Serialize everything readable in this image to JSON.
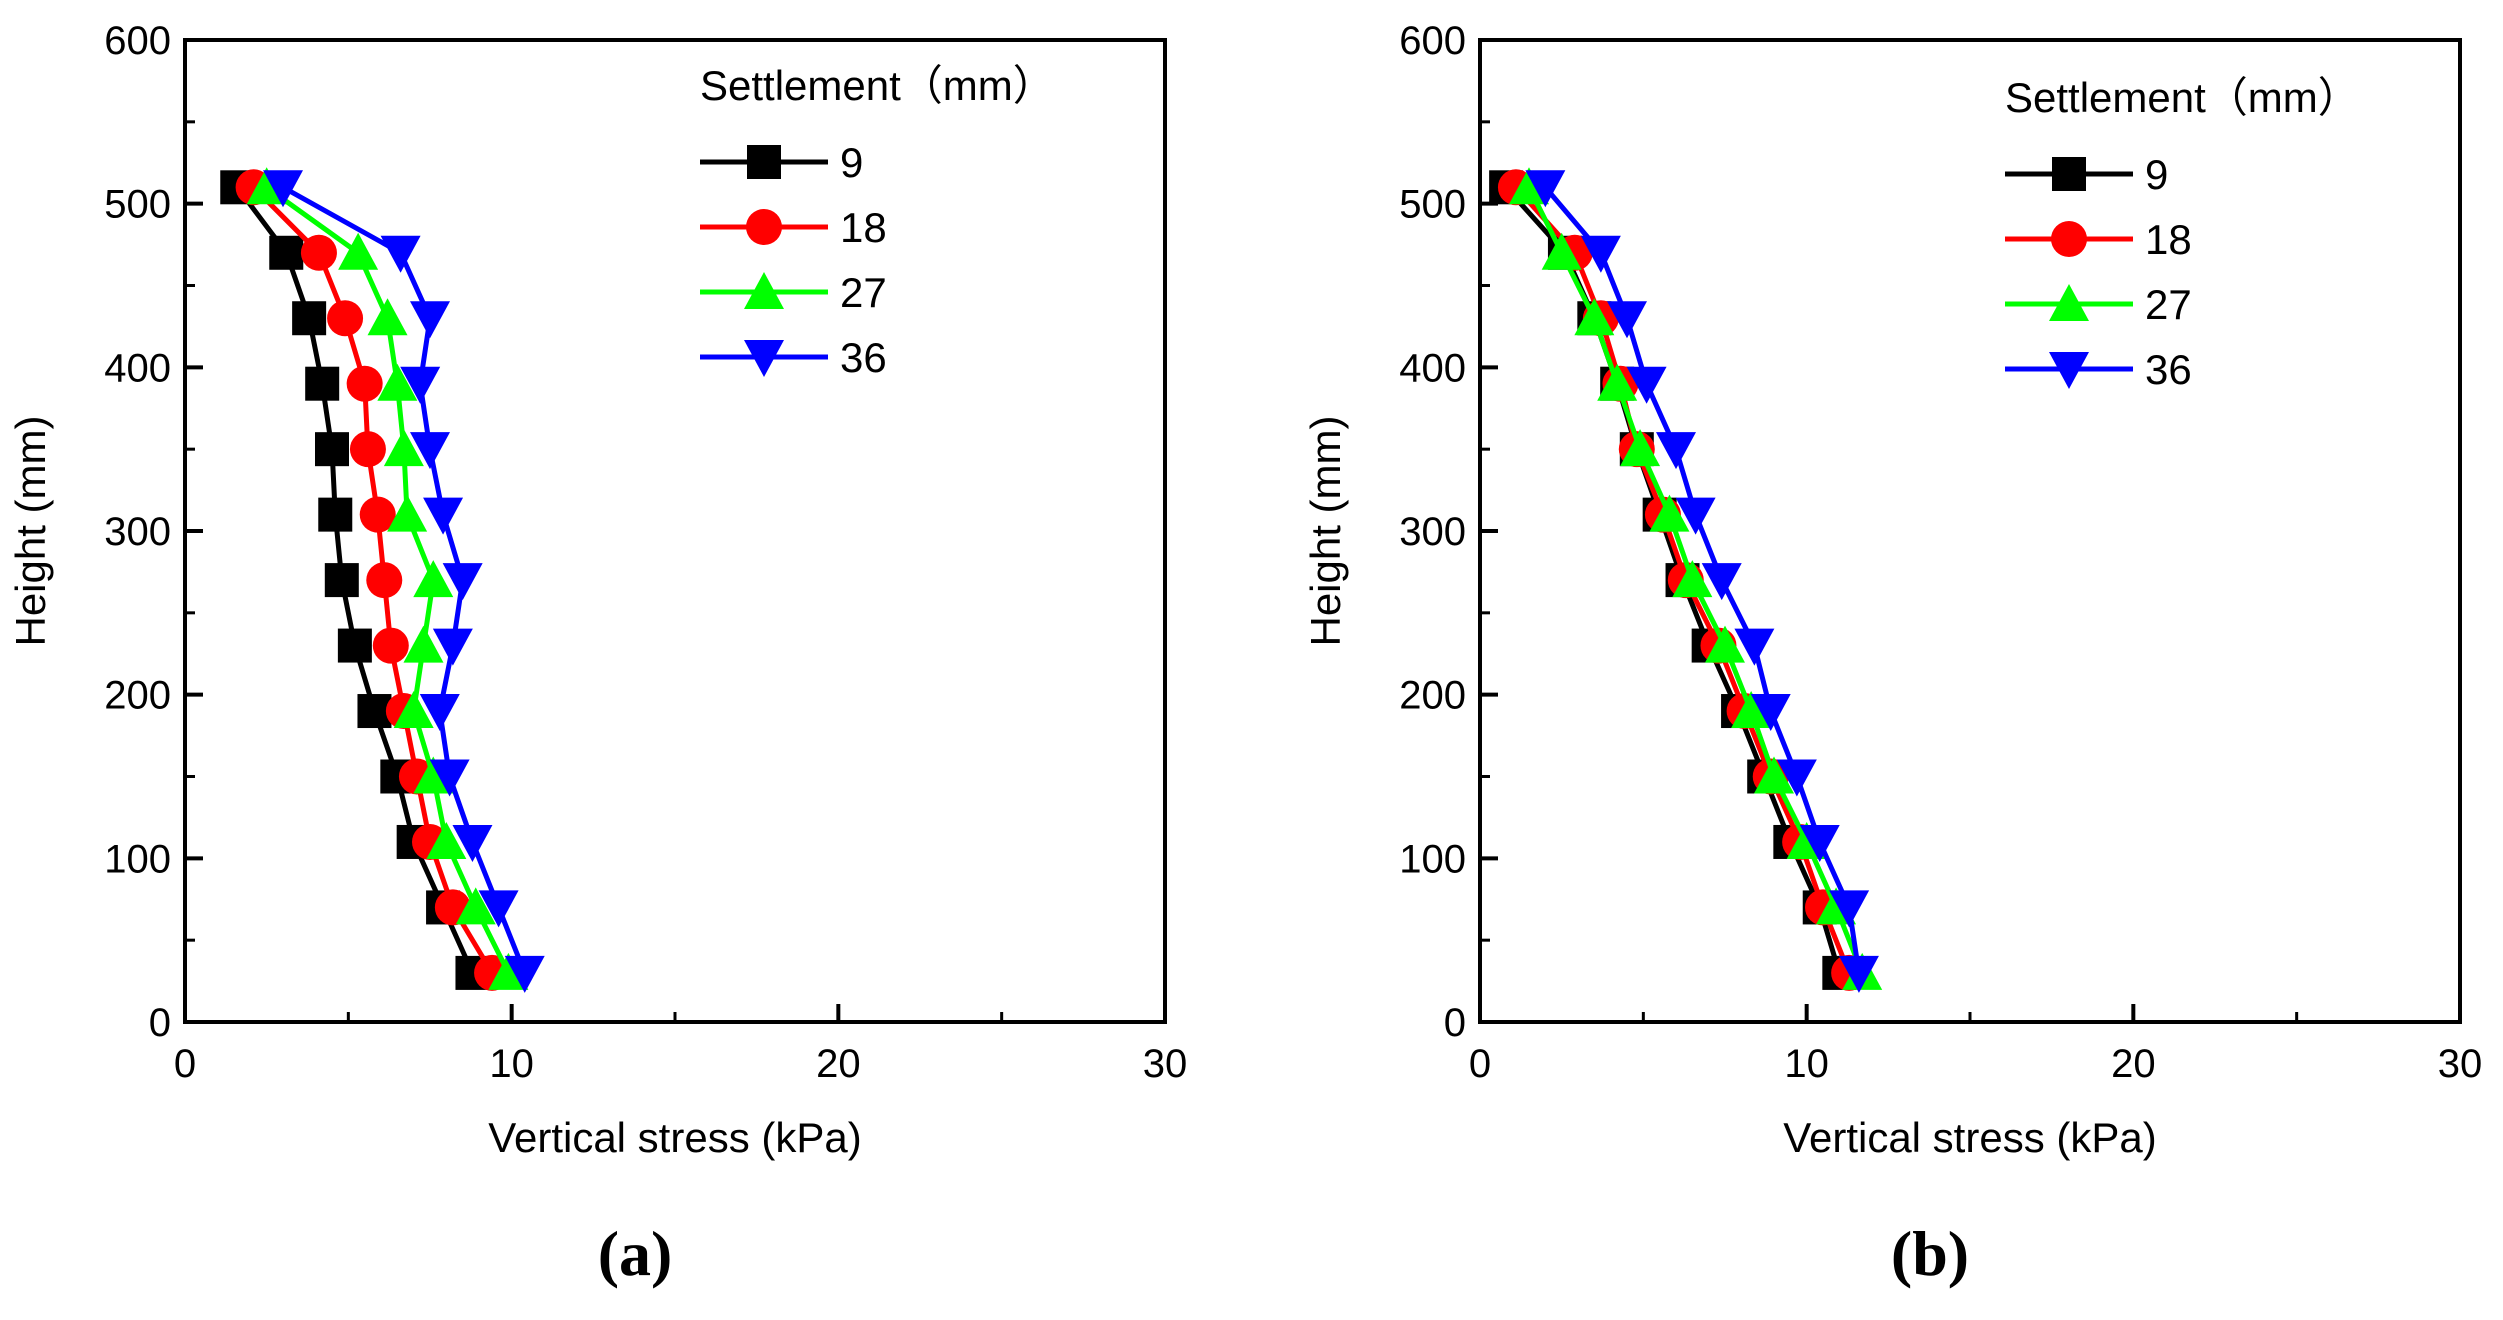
{
  "chart_data": [
    {
      "type": "line",
      "panel_label": "(a)",
      "xlabel": "Vertical stress (kPa)",
      "ylabel": "Height (mm)",
      "xlim": [
        0,
        30
      ],
      "ylim": [
        0,
        600
      ],
      "xticks": [
        0,
        10,
        20,
        30
      ],
      "yticks": [
        0,
        100,
        200,
        300,
        400,
        500,
        600
      ],
      "grid": false,
      "legend": {
        "title": "Settlement（mm）",
        "position": "top-right"
      },
      "y": [
        30,
        70,
        110,
        150,
        190,
        230,
        270,
        310,
        350,
        390,
        430,
        470,
        510
      ],
      "series": [
        {
          "name": "9",
          "color": "#000000",
          "marker": "square",
          "x": [
            8.8,
            7.9,
            7.0,
            6.5,
            5.8,
            5.2,
            4.8,
            4.6,
            4.5,
            4.2,
            3.8,
            3.1,
            1.6
          ]
        },
        {
          "name": "18",
          "color": "#ff0000",
          "marker": "circle",
          "x": [
            9.4,
            8.2,
            7.5,
            7.1,
            6.7,
            6.3,
            6.1,
            5.9,
            5.6,
            5.5,
            4.9,
            4.1,
            2.1
          ]
        },
        {
          "name": "27",
          "color": "#00ff00",
          "marker": "triangle-up",
          "x": [
            9.9,
            8.9,
            8.0,
            7.6,
            7.0,
            7.3,
            7.6,
            6.8,
            6.7,
            6.5,
            6.2,
            5.3,
            2.5
          ]
        },
        {
          "name": "36",
          "color": "#0000ff",
          "marker": "triangle-down",
          "x": [
            10.4,
            9.6,
            8.8,
            8.1,
            7.8,
            8.2,
            8.5,
            7.9,
            7.5,
            7.2,
            7.5,
            6.6,
            3.0
          ]
        }
      ]
    },
    {
      "type": "line",
      "panel_label": "(b)",
      "xlabel": "Vertical stress (kPa)",
      "ylabel": "Height (mm)",
      "xlim": [
        0,
        30
      ],
      "ylim": [
        0,
        600
      ],
      "xticks": [
        0,
        10,
        20,
        30
      ],
      "yticks": [
        0,
        100,
        200,
        300,
        400,
        500,
        600
      ],
      "grid": false,
      "legend": {
        "title": "Settlement（mm）",
        "position": "top-right"
      },
      "y": [
        30,
        70,
        110,
        150,
        190,
        230,
        270,
        310,
        350,
        390,
        430,
        470,
        510
      ],
      "series": [
        {
          "name": "9",
          "color": "#000000",
          "marker": "square",
          "x": [
            11.0,
            10.4,
            9.5,
            8.7,
            7.9,
            7.0,
            6.2,
            5.5,
            4.8,
            4.2,
            3.5,
            2.6,
            0.8
          ]
        },
        {
          "name": "18",
          "color": "#ff0000",
          "marker": "circle",
          "x": [
            11.3,
            10.5,
            9.8,
            8.9,
            8.1,
            7.3,
            6.3,
            5.6,
            4.8,
            4.3,
            3.7,
            2.9,
            1.1
          ]
        },
        {
          "name": "27",
          "color": "#00ff00",
          "marker": "triangle-up",
          "x": [
            11.7,
            10.9,
            10.0,
            9.0,
            8.3,
            7.5,
            6.5,
            5.8,
            4.9,
            4.2,
            3.5,
            2.5,
            1.5
          ]
        },
        {
          "name": "36",
          "color": "#0000ff",
          "marker": "triangle-down",
          "x": [
            11.6,
            11.3,
            10.4,
            9.7,
            8.9,
            8.4,
            7.4,
            6.6,
            6.0,
            5.1,
            4.5,
            3.7,
            2.0
          ]
        }
      ]
    }
  ]
}
